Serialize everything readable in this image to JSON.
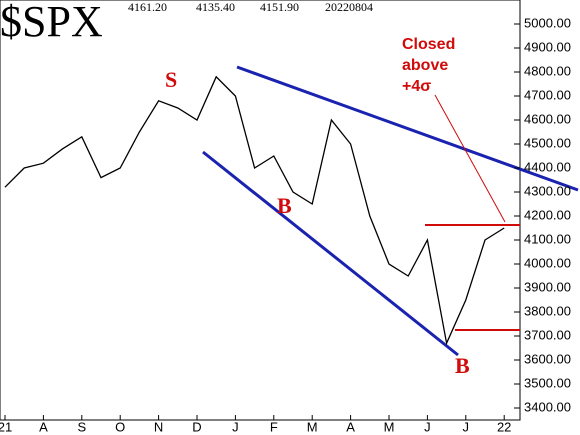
{
  "chart_data": {
    "type": "line",
    "title": "$SPX",
    "header_values": [
      "4161.20",
      "4135.40",
      "4151.90",
      "20220804"
    ],
    "annotations": [
      "S",
      "B",
      "B",
      "Closed",
      "above",
      "+4σ"
    ],
    "categories": [
      "21",
      null,
      "A",
      null,
      "S",
      null,
      "O",
      null,
      "N",
      null,
      "D",
      null,
      "J",
      null,
      "F",
      null,
      "M",
      null,
      "A",
      null,
      "M",
      null,
      "J",
      null,
      "J",
      null,
      "22"
    ],
    "values": [
      4320,
      4400,
      4420,
      4480,
      4530,
      4360,
      4400,
      4550,
      4680,
      4650,
      4600,
      4780,
      4700,
      4400,
      4450,
      4300,
      4250,
      4600,
      4500,
      4200,
      4000,
      3950,
      4100,
      3670,
      3850,
      4100,
      4150
    ],
    "color": "#000000",
    "ylim": [
      3350,
      5100
    ],
    "yticks": [
      {
        "value": 3400,
        "label": "3400.00"
      },
      {
        "value": 3500,
        "label": "3500.00"
      },
      {
        "value": 3600,
        "label": "3600.00"
      },
      {
        "value": 3700,
        "label": "3700.00"
      },
      {
        "value": 3800,
        "label": "3800.00"
      },
      {
        "value": 3900,
        "label": "3900.00"
      },
      {
        "value": 4000,
        "label": "4000.00"
      },
      {
        "value": 4100,
        "label": "4100.00"
      },
      {
        "value": 4200,
        "label": "4200.00"
      },
      {
        "value": 4300,
        "label": "4300.00"
      },
      {
        "value": 4400,
        "label": "4400.00"
      },
      {
        "value": 4500,
        "label": "4500.00"
      },
      {
        "value": 4600,
        "label": "4600.00"
      },
      {
        "value": 4700,
        "label": "4700.00"
      },
      {
        "value": 4800,
        "label": "4800.00"
      },
      {
        "value": 4900,
        "label": "4900.00"
      },
      {
        "value": 5000,
        "label": "5000.00"
      }
    ]
  }
}
